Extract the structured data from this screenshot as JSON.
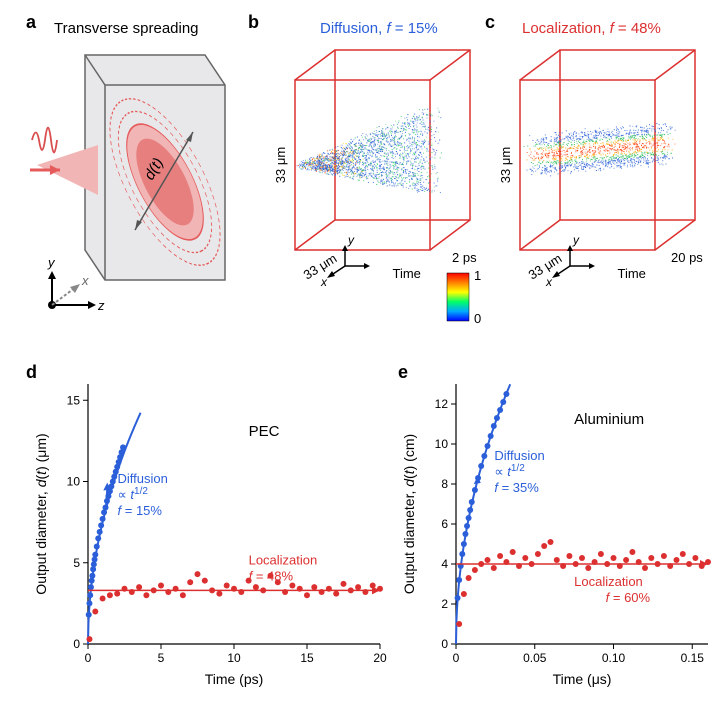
{
  "labels": {
    "a": "a",
    "b": "b",
    "c": "c",
    "d": "d",
    "e": "e"
  },
  "panel_a": {
    "title": "Transverse spreading",
    "d_label": "d(t)",
    "axes": {
      "x": "x",
      "y": "y",
      "z": "z"
    },
    "colors": {
      "slab_fill": "#e8e8ea",
      "slab_stroke": "#666666",
      "beam": "#e55a5a",
      "pulse": "#d94e4e",
      "spread_fill": "#f2b5b5",
      "spread_core": "#e77f7f"
    }
  },
  "panel_b": {
    "title": "Diffusion, f = 15%",
    "title_color": "#2b5fd9",
    "box_color": "#dc3030",
    "axis_y": "33 μm",
    "axis_x": "33 μm",
    "axis_t": "2 ps",
    "time_label": "Time",
    "xy_labels": {
      "x": "x",
      "y": "y"
    },
    "point_color": "#2a5fd6",
    "core_color": "#d93838",
    "colorbar": {
      "min": "0",
      "max": "1",
      "stops": [
        "#0000ff",
        "#00aaff",
        "#00ff66",
        "#ffff00",
        "#ff8000",
        "#ff0000"
      ]
    }
  },
  "panel_c": {
    "title": "Localization, f = 48%",
    "title_color": "#dc3030",
    "box_color": "#dc3030",
    "axis_y": "33 μm",
    "axis_x": "33 μm",
    "axis_t": "20 ps",
    "time_label": "Time",
    "xy_labels": {
      "x": "x",
      "y": "y"
    }
  },
  "panel_d": {
    "material": "PEC",
    "xlabel": "Time (ps)",
    "ylabel": "Output diameter, d(t) (μm)",
    "xlim": [
      0,
      20
    ],
    "xtick_step": 5,
    "ylim": [
      0,
      16
    ],
    "ytick_step": 5,
    "diffusion": {
      "label": "Diffusion",
      "law": "∝ t",
      "law_exp": "1/2",
      "f": "f = 15%",
      "color": "#2b5fd9",
      "fit_scale": 7.5,
      "points_t": [
        0.05,
        0.1,
        0.15,
        0.2,
        0.25,
        0.3,
        0.35,
        0.4,
        0.45,
        0.5,
        0.6,
        0.7,
        0.8,
        0.9,
        1.0,
        1.1,
        1.2,
        1.3,
        1.4,
        1.5,
        1.6,
        1.7,
        1.8,
        1.9,
        2.0,
        2.1,
        2.2,
        2.3,
        2.4
      ],
      "points_d": [
        1.8,
        2.5,
        3.0,
        3.5,
        3.9,
        4.2,
        4.6,
        4.9,
        5.2,
        5.5,
        6.0,
        6.5,
        6.9,
        7.3,
        7.7,
        8.1,
        8.4,
        8.8,
        9.1,
        9.4,
        9.7,
        10.0,
        10.3,
        10.6,
        10.9,
        11.2,
        11.5,
        11.8,
        12.1
      ]
    },
    "localization": {
      "label": "Localization",
      "f": "f = 48%",
      "color": "#dc3030",
      "line": 3.3,
      "points_t": [
        0.1,
        0.5,
        1,
        1.5,
        2,
        2.5,
        3,
        3.5,
        4,
        4.5,
        5,
        5.5,
        6,
        6.5,
        7,
        7.5,
        8,
        8.5,
        9,
        9.5,
        10,
        10.5,
        11,
        11.5,
        12,
        12.5,
        13,
        13.5,
        14,
        14.5,
        15,
        15.5,
        16,
        16.5,
        17,
        17.5,
        18,
        18.5,
        19,
        19.5,
        20
      ],
      "points_d": [
        0.3,
        2.0,
        2.8,
        3.0,
        3.1,
        3.4,
        3.2,
        3.5,
        3.0,
        3.3,
        3.6,
        3.2,
        3.4,
        3.0,
        3.8,
        4.3,
        3.9,
        3.3,
        3.1,
        3.6,
        3.4,
        3.2,
        3.9,
        3.5,
        3.3,
        4.2,
        3.8,
        3.2,
        3.6,
        3.4,
        3.0,
        3.5,
        3.2,
        3.4,
        3.1,
        3.7,
        3.3,
        3.5,
        3.2,
        3.6,
        3.4
      ]
    }
  },
  "panel_e": {
    "material": "Aluminium",
    "xlabel": "Time (μs)",
    "ylabel": "Output diameter, d(t) (cm)",
    "xlim": [
      0,
      0.16
    ],
    "xtick_step": 0.05,
    "ylim": [
      0,
      13
    ],
    "ytick_step": 2,
    "diffusion": {
      "label": "Diffusion",
      "law": "∝ t",
      "law_exp": "1/2",
      "f": "f = 35%",
      "color": "#2b5fd9",
      "fit_scale": 70,
      "points_t": [
        0.001,
        0.002,
        0.003,
        0.004,
        0.005,
        0.006,
        0.007,
        0.008,
        0.009,
        0.01,
        0.012,
        0.014,
        0.016,
        0.018,
        0.02,
        0.022,
        0.024,
        0.026,
        0.028,
        0.03,
        0.032
      ],
      "points_d": [
        2.3,
        3.2,
        3.9,
        4.5,
        5.0,
        5.5,
        5.9,
        6.3,
        6.7,
        7.1,
        7.7,
        8.3,
        8.9,
        9.4,
        9.9,
        10.4,
        10.9,
        11.3,
        11.7,
        12.1,
        12.5
      ]
    },
    "localization": {
      "label": "Localization",
      "f": "f = 60%",
      "color": "#dc3030",
      "line": 4.0,
      "points_t": [
        0.002,
        0.005,
        0.008,
        0.012,
        0.016,
        0.02,
        0.024,
        0.028,
        0.032,
        0.036,
        0.04,
        0.044,
        0.048,
        0.052,
        0.056,
        0.06,
        0.064,
        0.068,
        0.072,
        0.076,
        0.08,
        0.084,
        0.088,
        0.092,
        0.096,
        0.1,
        0.104,
        0.108,
        0.112,
        0.116,
        0.12,
        0.124,
        0.128,
        0.132,
        0.136,
        0.14,
        0.144,
        0.148,
        0.152,
        0.156,
        0.16
      ],
      "points_d": [
        1.0,
        2.5,
        3.3,
        3.7,
        4.0,
        4.2,
        3.8,
        4.4,
        4.1,
        4.6,
        3.9,
        4.3,
        4.0,
        4.5,
        4.9,
        5.1,
        4.2,
        3.9,
        4.4,
        4.0,
        4.3,
        3.8,
        4.1,
        4.5,
        4.0,
        4.3,
        3.9,
        4.2,
        4.6,
        4.1,
        3.8,
        4.3,
        4.0,
        4.4,
        3.9,
        4.2,
        4.5,
        4.0,
        4.3,
        3.9,
        4.1
      ]
    }
  },
  "style": {
    "axis_color": "#000000",
    "tick_fontsize": 12,
    "label_fontsize": 14
  }
}
